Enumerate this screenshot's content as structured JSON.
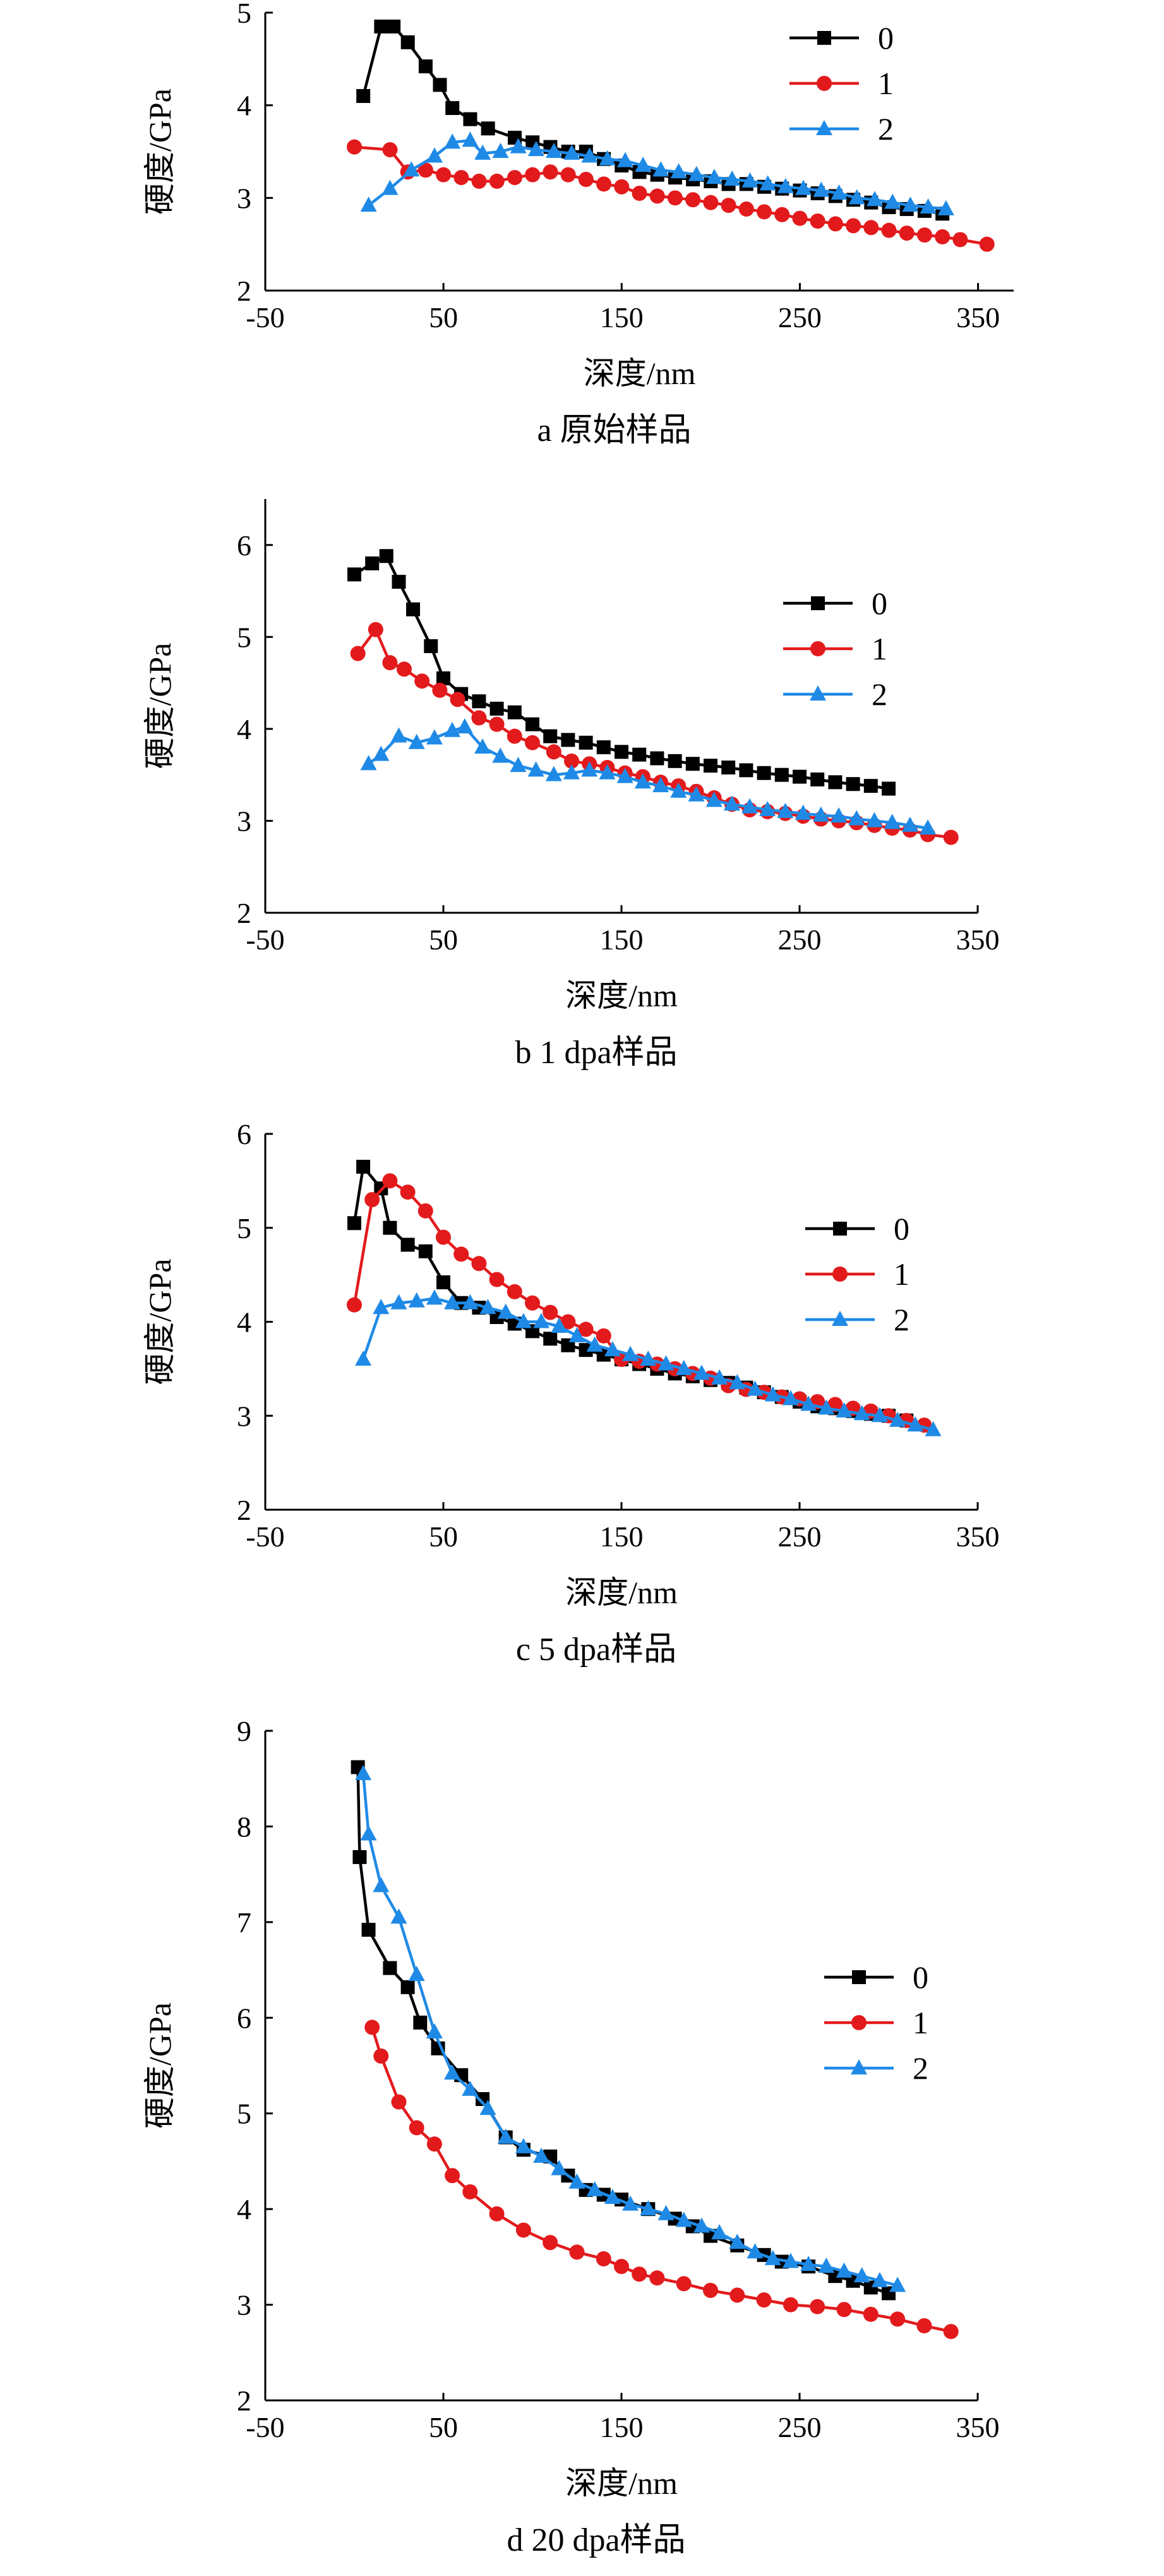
{
  "colors": {
    "0": "#000000",
    "1": "#e31a1c",
    "2": "#1f8ae6"
  },
  "chart_data": [
    {
      "type": "line",
      "caption": "a  原始样品",
      "xlabel": "深度/nm",
      "ylabel": "硬度/GPa",
      "xlim": [
        -50,
        370
      ],
      "ylim": [
        2,
        5
      ],
      "xticks": [
        -50,
        50,
        150,
        250,
        350
      ],
      "yticks": [
        2,
        3,
        4,
        5
      ],
      "legend_position": "top-right",
      "series": [
        {
          "name": "0",
          "marker": "square",
          "x": [
            5,
            15,
            22,
            30,
            40,
            48,
            55,
            65,
            75,
            90,
            100,
            110,
            120,
            130,
            140,
            150,
            160,
            170,
            180,
            190,
            200,
            210,
            220,
            230,
            240,
            250,
            260,
            270,
            280,
            290,
            300,
            310,
            320,
            330
          ],
          "y": [
            4.1,
            4.85,
            4.85,
            4.68,
            4.42,
            4.22,
            3.97,
            3.85,
            3.75,
            3.65,
            3.6,
            3.55,
            3.5,
            3.5,
            3.42,
            3.35,
            3.28,
            3.25,
            3.22,
            3.2,
            3.18,
            3.15,
            3.15,
            3.12,
            3.1,
            3.08,
            3.05,
            3.02,
            2.98,
            2.95,
            2.9,
            2.88,
            2.86,
            2.83
          ]
        },
        {
          "name": "1",
          "marker": "circle",
          "x": [
            0,
            20,
            30,
            40,
            50,
            60,
            70,
            80,
            90,
            100,
            110,
            120,
            130,
            140,
            150,
            160,
            170,
            180,
            190,
            200,
            210,
            220,
            230,
            240,
            250,
            260,
            270,
            280,
            290,
            300,
            310,
            320,
            330,
            340,
            355
          ],
          "y": [
            3.55,
            3.52,
            3.28,
            3.3,
            3.25,
            3.22,
            3.18,
            3.18,
            3.22,
            3.25,
            3.28,
            3.25,
            3.2,
            3.15,
            3.12,
            3.05,
            3.02,
            3.0,
            2.98,
            2.95,
            2.92,
            2.88,
            2.85,
            2.82,
            2.78,
            2.75,
            2.72,
            2.7,
            2.68,
            2.65,
            2.62,
            2.6,
            2.58,
            2.55,
            2.5
          ]
        },
        {
          "name": "2",
          "marker": "triangle",
          "x": [
            8,
            20,
            32,
            45,
            55,
            65,
            72,
            82,
            92,
            102,
            112,
            122,
            132,
            142,
            152,
            162,
            172,
            182,
            192,
            202,
            212,
            222,
            232,
            242,
            252,
            262,
            272,
            282,
            292,
            302,
            312,
            322,
            332
          ],
          "y": [
            2.92,
            3.1,
            3.3,
            3.45,
            3.6,
            3.62,
            3.48,
            3.5,
            3.55,
            3.52,
            3.5,
            3.48,
            3.45,
            3.42,
            3.4,
            3.35,
            3.3,
            3.28,
            3.25,
            3.22,
            3.2,
            3.18,
            3.15,
            3.12,
            3.1,
            3.08,
            3.05,
            3.0,
            2.98,
            2.95,
            2.92,
            2.9,
            2.88
          ]
        }
      ]
    },
    {
      "type": "line",
      "caption": "b  1 dpa样品",
      "xlabel": "深度/nm",
      "ylabel": "硬度/GPa",
      "xlim": [
        -50,
        350
      ],
      "ylim": [
        2,
        6.5
      ],
      "xticks": [
        -50,
        50,
        150,
        250,
        350
      ],
      "yticks": [
        2,
        3,
        4,
        5,
        6
      ],
      "legend_position": "top-right",
      "series": [
        {
          "name": "0",
          "marker": "square",
          "x": [
            0,
            10,
            18,
            25,
            33,
            43,
            50,
            60,
            70,
            80,
            90,
            100,
            110,
            120,
            130,
            140,
            150,
            160,
            170,
            180,
            190,
            200,
            210,
            220,
            230,
            240,
            250,
            260,
            270,
            280,
            290,
            300
          ],
          "y": [
            5.68,
            5.8,
            5.88,
            5.6,
            5.3,
            4.9,
            4.55,
            4.38,
            4.3,
            4.22,
            4.18,
            4.05,
            3.92,
            3.88,
            3.85,
            3.8,
            3.75,
            3.72,
            3.68,
            3.65,
            3.62,
            3.6,
            3.58,
            3.55,
            3.52,
            3.5,
            3.48,
            3.45,
            3.42,
            3.4,
            3.38,
            3.35
          ]
        },
        {
          "name": "1",
          "marker": "circle",
          "x": [
            2,
            12,
            20,
            28,
            38,
            48,
            58,
            70,
            80,
            90,
            100,
            112,
            122,
            132,
            142,
            152,
            162,
            172,
            182,
            192,
            202,
            212,
            222,
            232,
            242,
            252,
            262,
            272,
            282,
            292,
            302,
            312,
            322,
            335
          ],
          "y": [
            4.82,
            5.08,
            4.72,
            4.65,
            4.52,
            4.42,
            4.32,
            4.12,
            4.05,
            3.92,
            3.85,
            3.75,
            3.65,
            3.62,
            3.58,
            3.52,
            3.48,
            3.42,
            3.38,
            3.32,
            3.25,
            3.18,
            3.12,
            3.1,
            3.08,
            3.05,
            3.02,
            3.0,
            2.98,
            2.95,
            2.92,
            2.9,
            2.85,
            2.82
          ]
        },
        {
          "name": "2",
          "marker": "triangle",
          "x": [
            8,
            15,
            25,
            35,
            45,
            55,
            62,
            72,
            82,
            92,
            102,
            112,
            122,
            132,
            142,
            152,
            162,
            172,
            182,
            192,
            202,
            212,
            222,
            232,
            242,
            252,
            262,
            272,
            282,
            292,
            302,
            312,
            322
          ],
          "y": [
            3.62,
            3.72,
            3.92,
            3.85,
            3.9,
            3.98,
            4.02,
            3.8,
            3.7,
            3.6,
            3.55,
            3.5,
            3.52,
            3.55,
            3.52,
            3.48,
            3.42,
            3.38,
            3.32,
            3.28,
            3.22,
            3.18,
            3.15,
            3.12,
            3.1,
            3.08,
            3.06,
            3.05,
            3.02,
            3.0,
            2.98,
            2.95,
            2.92
          ]
        }
      ]
    },
    {
      "type": "line",
      "caption": "c  5 dpa样品",
      "xlabel": "深度/nm",
      "ylabel": "硬度/GPa",
      "xlim": [
        -50,
        350
      ],
      "ylim": [
        2,
        6
      ],
      "xticks": [
        -50,
        50,
        150,
        250,
        350
      ],
      "yticks": [
        2,
        3,
        4,
        5,
        6
      ],
      "legend_position": "right",
      "series": [
        {
          "name": "0",
          "marker": "square",
          "x": [
            0,
            5,
            15,
            20,
            30,
            40,
            50,
            60,
            70,
            80,
            90,
            100,
            110,
            120,
            130,
            140,
            150,
            160,
            170,
            180,
            190,
            200,
            210,
            220,
            230,
            240,
            250,
            260,
            270,
            280,
            290,
            300,
            310
          ],
          "y": [
            5.05,
            5.65,
            5.42,
            5.0,
            4.82,
            4.75,
            4.42,
            4.2,
            4.15,
            4.05,
            3.98,
            3.9,
            3.82,
            3.75,
            3.7,
            3.65,
            3.6,
            3.55,
            3.5,
            3.45,
            3.42,
            3.38,
            3.35,
            3.3,
            3.25,
            3.2,
            3.15,
            3.1,
            3.08,
            3.05,
            3.02,
            3.0,
            2.95
          ]
        },
        {
          "name": "1",
          "marker": "circle",
          "x": [
            0,
            10,
            20,
            30,
            40,
            50,
            60,
            70,
            80,
            90,
            100,
            110,
            120,
            130,
            140,
            150,
            160,
            170,
            180,
            190,
            200,
            210,
            220,
            230,
            240,
            250,
            260,
            270,
            280,
            290,
            300,
            310,
            320
          ],
          "y": [
            4.18,
            5.3,
            5.5,
            5.38,
            5.18,
            4.9,
            4.72,
            4.62,
            4.45,
            4.32,
            4.2,
            4.1,
            4.0,
            3.92,
            3.85,
            3.6,
            3.58,
            3.55,
            3.5,
            3.45,
            3.4,
            3.32,
            3.28,
            3.25,
            3.2,
            3.18,
            3.15,
            3.12,
            3.08,
            3.05,
            3.0,
            2.95,
            2.9
          ]
        },
        {
          "name": "2",
          "marker": "triangle",
          "x": [
            5,
            15,
            25,
            35,
            45,
            55,
            65,
            75,
            85,
            95,
            105,
            115,
            125,
            135,
            145,
            155,
            165,
            175,
            185,
            195,
            205,
            215,
            225,
            235,
            245,
            255,
            265,
            275,
            285,
            295,
            305,
            315,
            325
          ],
          "y": [
            3.6,
            4.15,
            4.2,
            4.22,
            4.25,
            4.2,
            4.2,
            4.15,
            4.1,
            4.0,
            4.0,
            3.95,
            3.85,
            3.75,
            3.7,
            3.65,
            3.6,
            3.55,
            3.5,
            3.45,
            3.4,
            3.35,
            3.28,
            3.22,
            3.18,
            3.12,
            3.08,
            3.05,
            3.02,
            3.0,
            2.95,
            2.9,
            2.85
          ]
        }
      ]
    },
    {
      "type": "line",
      "caption": "d  20 dpa样品",
      "xlabel": "深度/nm",
      "ylabel": "硬度/GPa",
      "xlim": [
        -50,
        350
      ],
      "ylim": [
        2,
        9
      ],
      "xticks": [
        -50,
        50,
        150,
        250,
        350
      ],
      "yticks": [
        2,
        3,
        4,
        5,
        6,
        7,
        8,
        9
      ],
      "legend_position": "right",
      "series": [
        {
          "name": "0",
          "marker": "square",
          "x": [
            2,
            3,
            8,
            20,
            30,
            37,
            47,
            60,
            72,
            85,
            95,
            110,
            120,
            130,
            140,
            150,
            165,
            180,
            190,
            200,
            215,
            230,
            240,
            255,
            270,
            280,
            290,
            300
          ],
          "y": [
            8.62,
            7.68,
            6.92,
            6.52,
            6.32,
            5.95,
            5.68,
            5.4,
            5.15,
            4.75,
            4.62,
            4.55,
            4.35,
            4.2,
            4.15,
            4.1,
            4.0,
            3.9,
            3.82,
            3.72,
            3.62,
            3.52,
            3.45,
            3.4,
            3.3,
            3.25,
            3.18,
            3.12
          ]
        },
        {
          "name": "1",
          "marker": "circle",
          "x": [
            10,
            15,
            25,
            35,
            45,
            55,
            65,
            80,
            95,
            110,
            125,
            140,
            150,
            160,
            170,
            185,
            200,
            215,
            230,
            245,
            260,
            275,
            290,
            305,
            320,
            335
          ],
          "y": [
            5.9,
            5.6,
            5.12,
            4.85,
            4.68,
            4.35,
            4.18,
            3.95,
            3.78,
            3.65,
            3.55,
            3.48,
            3.4,
            3.32,
            3.28,
            3.22,
            3.15,
            3.1,
            3.05,
            3.0,
            2.98,
            2.95,
            2.9,
            2.85,
            2.78,
            2.72
          ]
        },
        {
          "name": "2",
          "marker": "triangle",
          "x": [
            5,
            8,
            15,
            25,
            35,
            45,
            55,
            65,
            75,
            85,
            95,
            105,
            115,
            125,
            135,
            145,
            155,
            165,
            175,
            185,
            195,
            205,
            215,
            225,
            235,
            245,
            255,
            265,
            275,
            285,
            295,
            305
          ],
          "y": [
            8.55,
            7.92,
            7.38,
            7.05,
            6.45,
            5.85,
            5.42,
            5.25,
            5.05,
            4.75,
            4.65,
            4.55,
            4.42,
            4.28,
            4.2,
            4.12,
            4.05,
            4.0,
            3.95,
            3.88,
            3.82,
            3.75,
            3.65,
            3.55,
            3.48,
            3.45,
            3.42,
            3.4,
            3.35,
            3.3,
            3.25,
            3.2
          ]
        }
      ]
    }
  ]
}
